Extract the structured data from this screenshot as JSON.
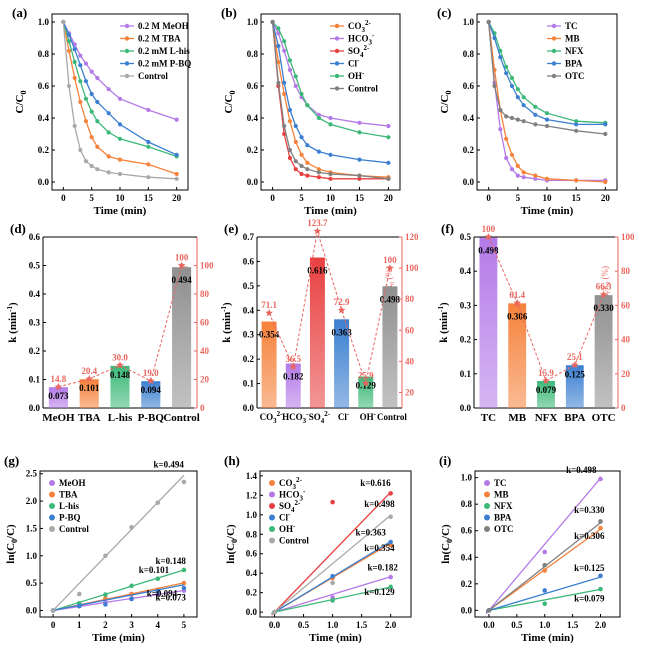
{
  "colors": {
    "red": "#e8665f",
    "kline": "#ee6a63"
  },
  "chart_data": [
    {
      "id": "a",
      "panel_label": "(a)",
      "type": "line",
      "xlabel": "Time (min)",
      "ylabel": "C/C0",
      "xlim": [
        -2,
        22
      ],
      "ylim": [
        -0.05,
        1.05
      ],
      "xticks": [
        0,
        5,
        10,
        15,
        20
      ],
      "yticks": [
        0.0,
        0.2,
        0.4,
        0.6,
        0.8,
        1.0
      ],
      "x": [
        0,
        1,
        2,
        3,
        4,
        5,
        6,
        8,
        10,
        15,
        20
      ],
      "series": [
        {
          "name": "0.2 M MeOH",
          "color": "#b47ae8",
          "values": [
            1,
            0.93,
            0.86,
            0.79,
            0.74,
            0.69,
            0.65,
            0.58,
            0.52,
            0.45,
            0.39
          ]
        },
        {
          "name": "0.2 M TBA",
          "color": "#f5823b",
          "values": [
            1,
            0.82,
            0.65,
            0.5,
            0.38,
            0.28,
            0.22,
            0.16,
            0.14,
            0.11,
            0.05
          ]
        },
        {
          "name": "0.2 mM L-his",
          "color": "#3cb878",
          "values": [
            1,
            0.88,
            0.75,
            0.63,
            0.52,
            0.44,
            0.38,
            0.31,
            0.27,
            0.22,
            0.16
          ]
        },
        {
          "name": "0.2 mM P-BQ",
          "color": "#3c7fd0",
          "values": [
            1,
            0.92,
            0.83,
            0.73,
            0.63,
            0.55,
            0.5,
            0.43,
            0.36,
            0.25,
            0.17
          ]
        },
        {
          "name": "Control",
          "color": "#a9a9a9",
          "values": [
            1,
            0.6,
            0.35,
            0.2,
            0.13,
            0.1,
            0.08,
            0.06,
            0.05,
            0.03,
            0.02
          ]
        }
      ]
    },
    {
      "id": "b",
      "panel_label": "(b)",
      "type": "line",
      "xlabel": "Time (min)",
      "ylabel": "C/C0",
      "xlim": [
        -2,
        22
      ],
      "ylim": [
        -0.05,
        1.05
      ],
      "xticks": [
        0,
        5,
        10,
        15,
        20
      ],
      "yticks": [
        0.0,
        0.2,
        0.4,
        0.6,
        0.8,
        1.0
      ],
      "x": [
        0,
        1,
        2,
        3,
        4,
        5,
        6,
        8,
        10,
        15,
        20
      ],
      "series": [
        {
          "name": "CO3 2-",
          "color": "#f5823b",
          "values": [
            1,
            0.75,
            0.55,
            0.38,
            0.25,
            0.17,
            0.12,
            0.08,
            0.06,
            0.04,
            0.03
          ]
        },
        {
          "name": "HCO3 -",
          "color": "#b47ae8",
          "values": [
            1,
            0.93,
            0.82,
            0.7,
            0.6,
            0.53,
            0.48,
            0.42,
            0.4,
            0.37,
            0.35
          ]
        },
        {
          "name": "SO4 2-",
          "color": "#e84040",
          "values": [
            1,
            0.6,
            0.3,
            0.15,
            0.08,
            0.05,
            0.04,
            0.03,
            0.02,
            0.02,
            0.02
          ]
        },
        {
          "name": "Cl-",
          "color": "#3c7fd0",
          "values": [
            1,
            0.85,
            0.62,
            0.45,
            0.35,
            0.28,
            0.23,
            0.19,
            0.17,
            0.14,
            0.12
          ]
        },
        {
          "name": "OH-",
          "color": "#3cb878",
          "values": [
            1,
            0.96,
            0.88,
            0.76,
            0.66,
            0.55,
            0.48,
            0.4,
            0.36,
            0.31,
            0.28
          ]
        },
        {
          "name": "Control",
          "color": "#808080",
          "values": [
            1,
            0.62,
            0.35,
            0.2,
            0.13,
            0.1,
            0.08,
            0.06,
            0.05,
            0.04,
            0.02
          ]
        }
      ]
    },
    {
      "id": "c",
      "panel_label": "(c)",
      "type": "line",
      "xlabel": "Time (min)",
      "ylabel": "C/C0",
      "xlim": [
        -2,
        22
      ],
      "ylim": [
        -0.05,
        1.05
      ],
      "xticks": [
        0,
        5,
        10,
        15,
        20
      ],
      "yticks": [
        0.0,
        0.2,
        0.4,
        0.6,
        0.8,
        1.0
      ],
      "x": [
        0,
        1,
        2,
        3,
        4,
        5,
        6,
        8,
        10,
        15,
        20
      ],
      "series": [
        {
          "name": "TC",
          "color": "#b47ae8",
          "values": [
            1,
            0.62,
            0.33,
            0.15,
            0.08,
            0.04,
            0.03,
            0.02,
            0.01,
            0.01,
            0.01
          ]
        },
        {
          "name": "MB",
          "color": "#f5823b",
          "values": [
            1,
            0.7,
            0.45,
            0.27,
            0.17,
            0.1,
            0.06,
            0.04,
            0.02,
            0.01,
            0.0
          ]
        },
        {
          "name": "NFX",
          "color": "#3cb878",
          "values": [
            1,
            0.93,
            0.82,
            0.72,
            0.65,
            0.58,
            0.53,
            0.47,
            0.43,
            0.38,
            0.37
          ]
        },
        {
          "name": "BPA",
          "color": "#3c7fd0",
          "values": [
            1,
            0.9,
            0.78,
            0.68,
            0.6,
            0.53,
            0.48,
            0.42,
            0.39,
            0.36,
            0.36
          ]
        },
        {
          "name": "OTC",
          "color": "#808080",
          "values": [
            1,
            0.6,
            0.45,
            0.41,
            0.4,
            0.39,
            0.38,
            0.36,
            0.35,
            0.32,
            0.3
          ]
        }
      ]
    },
    {
      "id": "d",
      "panel_label": "(d)",
      "type": "bar",
      "ylabel": "k (min-1)",
      "y2label": "k_i/k_0 (%)",
      "categories": [
        "MeOH",
        "TBA",
        "L-his",
        "P-BQ",
        "Control"
      ],
      "values": [
        0.073,
        0.101,
        0.148,
        0.094,
        0.494
      ],
      "value_labels": [
        "0.073",
        "0.101",
        "0.148",
        "0.094",
        "0.494"
      ],
      "ratio": [
        14.8,
        20.4,
        30.0,
        19.0,
        100
      ],
      "ratio_labels": [
        "14.8",
        "20.4",
        "30.0",
        "19.0",
        "100"
      ],
      "colors": [
        "#b47ae8",
        "#f5823b",
        "#3cb878",
        "#3c7fd0",
        "#909090"
      ],
      "ylim": [
        0,
        0.6
      ],
      "yticks": [
        0.0,
        0.1,
        0.2,
        0.3,
        0.4,
        0.5,
        0.6
      ],
      "y2lim": [
        0,
        120
      ],
      "y2ticks": [
        0,
        20,
        40,
        60,
        80,
        100
      ]
    },
    {
      "id": "e",
      "panel_label": "(e)",
      "type": "bar",
      "ylabel": "k (min-1)",
      "y2label": "k_i/k_0 (%)",
      "categories": [
        "CO3 2-",
        "HCO3 -",
        "SO4 2-",
        "Cl-",
        "OH-",
        "Control"
      ],
      "values": [
        0.354,
        0.182,
        0.616,
        0.363,
        0.129,
        0.498
      ],
      "value_labels": [
        "0.354",
        "0.182",
        "0.616",
        "0.363",
        "0.129",
        "0.498"
      ],
      "ratio": [
        71.1,
        36.5,
        123.7,
        72.9,
        25.9,
        100
      ],
      "ratio_labels": [
        "71.1",
        "36.5",
        "123.7",
        "72.9",
        "25.9",
        "100"
      ],
      "colors": [
        "#f5823b",
        "#b47ae8",
        "#e84040",
        "#3c7fd0",
        "#3cb878",
        "#909090"
      ],
      "ylim": [
        0,
        0.7
      ],
      "yticks": [
        0.0,
        0.1,
        0.2,
        0.3,
        0.4,
        0.5,
        0.6,
        0.7
      ],
      "y2lim": [
        10,
        120
      ],
      "y2ticks": [
        20,
        40,
        60,
        80,
        100,
        120
      ]
    },
    {
      "id": "f",
      "panel_label": "(f)",
      "type": "bar",
      "ylabel": "k (min-1)",
      "y2label": "k_i/k_0 (%)",
      "categories": [
        "TC",
        "MB",
        "NFX",
        "BPA",
        "OTC"
      ],
      "values": [
        0.498,
        0.306,
        0.079,
        0.125,
        0.33
      ],
      "value_labels": [
        "0.498",
        "0.306",
        "0.079",
        "0.125",
        "0.330"
      ],
      "ratio": [
        100,
        61.4,
        15.9,
        25.1,
        66.3
      ],
      "ratio_labels": [
        "100",
        "61.4",
        "15.9",
        "25.1",
        "66.3"
      ],
      "colors": [
        "#b47ae8",
        "#f5823b",
        "#3cb878",
        "#3c7fd0",
        "#909090"
      ],
      "ylim": [
        0,
        0.5
      ],
      "yticks": [
        0.0,
        0.1,
        0.2,
        0.3,
        0.4,
        0.5
      ],
      "y2lim": [
        0,
        100
      ],
      "y2ticks": [
        0,
        20,
        40,
        60,
        80,
        100
      ]
    },
    {
      "id": "g",
      "panel_label": "(g)",
      "type": "scatter",
      "xlabel": "Time (min)",
      "ylabel": "ln(C0/C)",
      "xlim": [
        -0.5,
        5.5
      ],
      "ylim": [
        -0.12,
        2.55
      ],
      "xticks": [
        0,
        1,
        2,
        3,
        4,
        5
      ],
      "yticks": [
        0.0,
        0.5,
        1.0,
        1.5,
        2.0,
        2.5
      ],
      "x": [
        0,
        1,
        2,
        3,
        4,
        5
      ],
      "series": [
        {
          "name": "MeOH",
          "color": "#b47ae8",
          "k": 0.073,
          "points": [
            0,
            0.08,
            0.15,
            0.22,
            0.29,
            0.36
          ]
        },
        {
          "name": "TBA",
          "color": "#f5823b",
          "k": 0.101,
          "points": [
            0,
            0.12,
            0.22,
            0.3,
            0.38,
            0.5
          ]
        },
        {
          "name": "L-his",
          "color": "#3cb878",
          "k": 0.148,
          "points": [
            0,
            0.13,
            0.29,
            0.45,
            0.58,
            0.74
          ]
        },
        {
          "name": "P-BQ",
          "color": "#3c7fd0",
          "k": 0.094,
          "points": [
            0,
            0.08,
            0.11,
            0.21,
            0.35,
            0.41
          ]
        },
        {
          "name": "Control",
          "color": "#a9a9a9",
          "k": 0.494,
          "points": [
            0,
            0.3,
            1.0,
            1.52,
            1.97,
            2.35
          ]
        }
      ],
      "annotations": [
        {
          "text": "k=0.494",
          "color": "#a9a9a9"
        },
        {
          "text": "k=0.148",
          "color": "#3cb878"
        },
        {
          "text": "k=0.101",
          "color": "#f5823b"
        },
        {
          "text": "k=0.094",
          "color": "#3c7fd0"
        },
        {
          "text": "k=0.073",
          "color": "#b47ae8"
        }
      ]
    },
    {
      "id": "h",
      "panel_label": "(h)",
      "type": "scatter",
      "xlabel": "Time (min)",
      "ylabel": "ln(C0/C)",
      "xlim": [
        -0.25,
        2.35
      ],
      "ylim": [
        -0.05,
        1.45
      ],
      "xticks": [
        0.0,
        0.5,
        1.0,
        1.5,
        2.0
      ],
      "yticks": [
        0.0,
        0.2,
        0.4,
        0.6,
        0.8,
        1.0,
        1.2,
        1.4
      ],
      "x": [
        0,
        1,
        2
      ],
      "series": [
        {
          "name": "CO3 2-",
          "color": "#f5823b",
          "k": 0.354,
          "points": [
            0,
            0.35,
            0.69
          ]
        },
        {
          "name": "HCO3 -",
          "color": "#b47ae8",
          "k": 0.182,
          "points": [
            0,
            0.15,
            0.36
          ]
        },
        {
          "name": "SO4 2-",
          "color": "#e84040",
          "k": 0.616,
          "points": [
            0,
            1.13,
            1.22
          ]
        },
        {
          "name": "Cl-",
          "color": "#3c7fd0",
          "k": 0.363,
          "points": [
            0,
            0.37,
            0.72
          ]
        },
        {
          "name": "OH-",
          "color": "#3cb878",
          "k": 0.129,
          "points": [
            0,
            0.12,
            0.26
          ]
        },
        {
          "name": "Control",
          "color": "#a9a9a9",
          "k": 0.498,
          "points": [
            0,
            0.3,
            0.98
          ]
        }
      ],
      "annotations": [
        {
          "text": "k=0.616",
          "color": "#e84040"
        },
        {
          "text": "k=0.498",
          "color": "#a9a9a9"
        },
        {
          "text": "k=0.363",
          "color": "#3c7fd0"
        },
        {
          "text": "k=0.354",
          "color": "#f5823b"
        },
        {
          "text": "k=0.182",
          "color": "#b47ae8"
        },
        {
          "text": "k=0.129",
          "color": "#3cb878"
        }
      ]
    },
    {
      "id": "i",
      "panel_label": "(i)",
      "type": "scatter",
      "xlabel": "Time (min)",
      "ylabel": "ln(C0/C)",
      "xlim": [
        -0.25,
        2.35
      ],
      "ylim": [
        -0.05,
        1.05
      ],
      "xticks": [
        0.0,
        0.5,
        1.0,
        1.5,
        2.0
      ],
      "yticks": [
        0.0,
        0.2,
        0.4,
        0.6,
        0.8,
        1.0
      ],
      "x": [
        0,
        1,
        2
      ],
      "series": [
        {
          "name": "TC",
          "color": "#b47ae8",
          "k": 0.498,
          "points": [
            0,
            0.44,
            0.99
          ]
        },
        {
          "name": "MB",
          "color": "#f5823b",
          "k": 0.306,
          "points": [
            0,
            0.3,
            0.62
          ]
        },
        {
          "name": "NFX",
          "color": "#3cb878",
          "k": 0.079,
          "points": [
            0,
            0.05,
            0.16
          ]
        },
        {
          "name": "BPA",
          "color": "#3c7fd0",
          "k": 0.125,
          "points": [
            0,
            0.15,
            0.26
          ]
        },
        {
          "name": "OTC",
          "color": "#808080",
          "k": 0.33,
          "points": [
            0,
            0.34,
            0.67
          ]
        }
      ],
      "annotations": [
        {
          "text": "k=0.498",
          "color": "#b47ae8"
        },
        {
          "text": "k=0.330",
          "color": "#808080"
        },
        {
          "text": "k=0.306",
          "color": "#f5823b"
        },
        {
          "text": "k=0.125",
          "color": "#3c7fd0"
        },
        {
          "text": "k=0.079",
          "color": "#3cb878"
        }
      ]
    }
  ]
}
